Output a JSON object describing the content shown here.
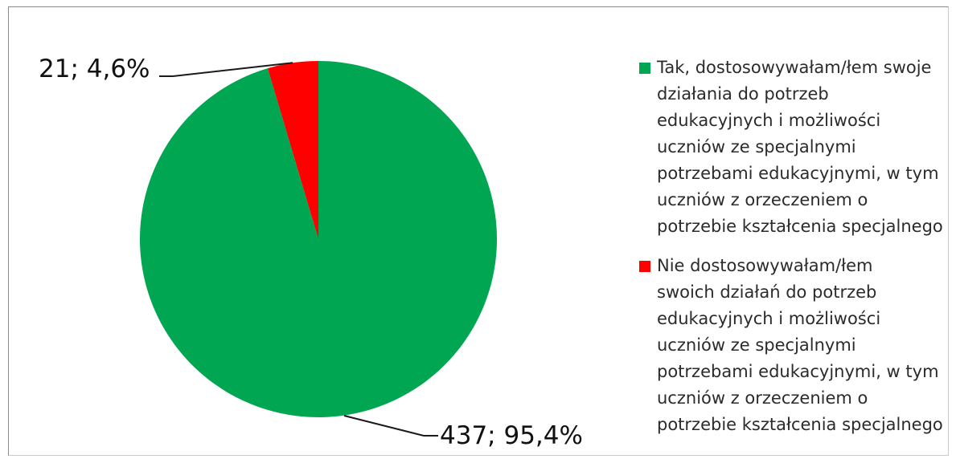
{
  "chart_data": {
    "type": "pie",
    "slices": [
      {
        "name": "Tak, dostosowywałam/łem swoje działania do potrzeb edukacyjnych i możliwości uczniów ze specjalnymi potrzebami edukacyjnymi, w tym uczniów z orzeczeniem o potrzebie kształcenia specjalnego",
        "legend_text": "Tak, dostosowywałam/łem swoje\ndziałania do potrzeb\nedukacyjnych i możliwości\nuczniów ze specjalnymi\npotrzebami edukacyjnymi, w tym\nuczniów z orzeczeniem o\npotrzebie kształcenia specjalnego",
        "value": 437,
        "percent": 95.4,
        "label": "437; 95,4%",
        "color": "#00a651"
      },
      {
        "name": "Nie dostosowywałam/łem swoich działań do potrzeb edukacyjnych i możliwości uczniów ze specjalnymi potrzebami edukacyjnymi, w tym uczniów z orzeczeniem o potrzebie kształcenia specjalnego",
        "legend_text": "Nie dostosowywałam/łem\nswoich działań do potrzeb\nedukacyjnych i możliwości\nuczniów ze specjalnymi\npotrzebami edukacyjnymi, w tym\nuczniów z orzeczeniem o\npotrzebie kształcenia specjalnego",
        "value": 21,
        "percent": 4.6,
        "label": "21; 4,6%",
        "color": "#ff0000"
      }
    ],
    "legend_position": "right"
  }
}
